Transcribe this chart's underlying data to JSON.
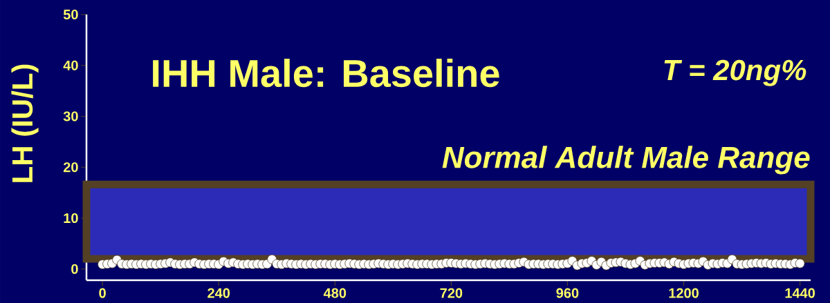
{
  "chart_data": {
    "type": "scatter",
    "title": "IHH Male: Baseline",
    "ylabel": "LH (IU/L)",
    "annotations": [
      "T = 20ng%"
    ],
    "x": [
      0,
      10,
      20,
      30,
      40,
      50,
      60,
      70,
      80,
      90,
      100,
      110,
      120,
      130,
      140,
      150,
      160,
      170,
      180,
      190,
      200,
      210,
      220,
      230,
      240,
      250,
      260,
      270,
      280,
      290,
      300,
      310,
      320,
      330,
      340,
      350,
      360,
      370,
      380,
      390,
      400,
      410,
      420,
      430,
      440,
      450,
      460,
      470,
      480,
      490,
      500,
      510,
      520,
      530,
      540,
      550,
      560,
      570,
      580,
      590,
      600,
      610,
      620,
      630,
      640,
      650,
      660,
      670,
      680,
      690,
      700,
      710,
      720,
      730,
      740,
      750,
      760,
      770,
      780,
      790,
      800,
      810,
      820,
      830,
      840,
      850,
      860,
      870,
      880,
      890,
      900,
      910,
      920,
      930,
      940,
      950,
      960,
      970,
      980,
      990,
      1000,
      1010,
      1020,
      1030,
      1040,
      1050,
      1060,
      1070,
      1080,
      1090,
      1100,
      1110,
      1120,
      1130,
      1140,
      1150,
      1160,
      1170,
      1180,
      1190,
      1200,
      1210,
      1220,
      1230,
      1240,
      1250,
      1260,
      1270,
      1280,
      1290,
      1300,
      1310,
      1320,
      1330,
      1340,
      1350,
      1360,
      1370,
      1380,
      1390,
      1400,
      1410,
      1420,
      1430,
      1440
    ],
    "values": [
      0.9,
      1.0,
      1.1,
      1.8,
      1.0,
      0.9,
      1.0,
      0.9,
      1.0,
      0.9,
      1.0,
      0.9,
      1.0,
      1.1,
      1.3,
      1.0,
      0.9,
      1.0,
      1.0,
      1.3,
      1.0,
      0.9,
      1.0,
      1.0,
      0.9,
      1.5,
      1.1,
      1.3,
      1.0,
      0.9,
      1.0,
      0.9,
      1.0,
      0.9,
      1.0,
      1.9,
      1.0,
      0.9,
      1.1,
      1.0,
      0.9,
      1.0,
      0.9,
      1.0,
      0.9,
      1.0,
      1.0,
      0.9,
      1.0,
      0.9,
      1.0,
      1.1,
      1.0,
      0.9,
      1.0,
      0.9,
      1.0,
      1.1,
      1.0,
      0.9,
      1.0,
      0.9,
      1.0,
      1.1,
      1.0,
      0.9,
      1.0,
      1.0,
      0.9,
      1.0,
      1.0,
      1.2,
      1.2,
      1.1,
      1.0,
      1.1,
      1.0,
      0.9,
      1.0,
      1.1,
      1.0,
      0.9,
      1.0,
      1.1,
      1.0,
      1.0,
      1.2,
      1.4,
      0.9,
      1.0,
      1.0,
      0.9,
      1.0,
      1.0,
      0.9,
      1.0,
      1.1,
      1.6,
      0.7,
      1.1,
      1.2,
      1.6,
      0.8,
      1.4,
      0.7,
      1.2,
      1.3,
      1.4,
      1.1,
      0.9,
      1.1,
      1.6,
      0.8,
      1.1,
      1.2,
      1.2,
      1.3,
      1.0,
      1.4,
      1.1,
      0.9,
      1.1,
      1.2,
      1.1,
      1.5,
      0.8,
      1.1,
      1.0,
      1.2,
      1.1,
      1.9,
      1.0,
      0.9,
      1.0,
      1.1,
      1.2,
      1.1,
      1.2,
      1.0,
      1.1,
      1.0,
      1.0,
      0.9,
      1.2,
      1.1
    ],
    "color": "#ffffff",
    "grid": false,
    "xlim": [
      -33,
      1462
    ],
    "ylim": [
      -2.2,
      50
    ],
    "xticks": [
      0,
      240,
      480,
      720,
      960,
      1200,
      1440
    ],
    "yticks": [
      0,
      10,
      20,
      30,
      40,
      50
    ],
    "bands": [
      {
        "axis": "y",
        "from": 2.0,
        "to": 16.6,
        "label": "Normal Adult Male Range",
        "color": "#2b2bb8"
      }
    ]
  }
}
